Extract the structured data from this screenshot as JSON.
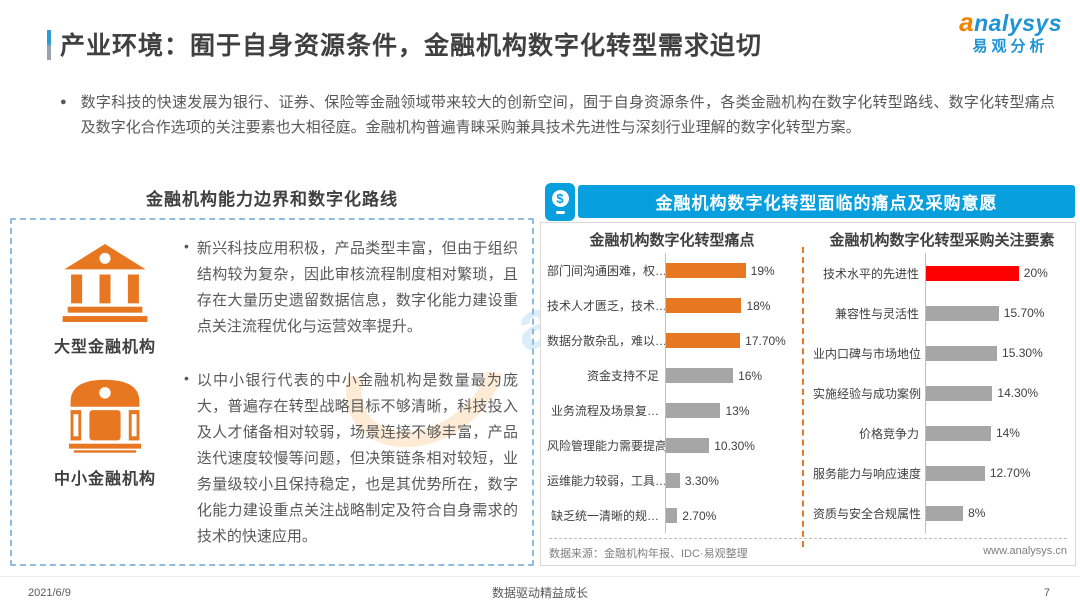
{
  "page": {
    "title": "产业环境：囿于自身资源条件，金融机构数字化转型需求迫切",
    "logo": {
      "brand_a": "a",
      "brand_rest": "nalysys",
      "cn": "易观分析"
    },
    "intro": {
      "bullet_glyph": "●",
      "text": "数字科技的快速发展为银行、证券、保险等金融领域带来较大的创新空间，囿于自身资源条件，各类金融机构在数字化转型路线、数字化转型痛点及数字化合作选项的关注要素也大相径庭。金融机构普遍青睐采购兼具技术先进性与深刻行业理解的数字化转型方案。"
    },
    "footer": {
      "date": "2021/6/9",
      "slogan": "数据驱动精益成长",
      "page_number": "7"
    }
  },
  "left_panel": {
    "title": "金融机构能力边界和数字化路线",
    "bullet_glyph": "•",
    "items": [
      {
        "icon": "bank-large-icon",
        "label": "大型金融机构",
        "text": "新兴科技应用积极，产品类型丰富，但由于组织结构较为复杂，因此审核流程制度相对繁琐，且存在大量历史遗留数据信息，数字化能力建设重点关注流程优化与运营效率提升。"
      },
      {
        "icon": "bank-small-icon",
        "label": "中小金融机构",
        "text": "以中小银行代表的中小金融机构是数量最为庞大，普遍存在转型战略目标不够清晰，科技投入及人才储备相对较弱，场景连接不够丰富，产品迭代速度较慢等问题，但决策链条相对较短，业务量级较小且保持稳定，也是其优势所在，数字化能力建设重点关注战略制定及符合自身需求的技术的快速应用。"
      }
    ]
  },
  "right_panel": {
    "header": "金融机构数字化转型面临的痛点及采购意愿",
    "icon_glyph": "$",
    "source": "数据来源：金融机构年报、IDC·易观整理",
    "website": "www.analysys.cn"
  },
  "chart_data": [
    {
      "type": "bar",
      "orientation": "horizontal",
      "title": "金融机构数字化转型痛点",
      "categories": [
        "部门间沟通困难，权…",
        "技术人才匮乏，技术…",
        "数据分散杂乱，难以…",
        "资金支持不足",
        "业务流程及场景复…",
        "风险管理能力需要提高",
        "运维能力较弱，工具…",
        "缺乏统一清晰的规…"
      ],
      "values": [
        19,
        18,
        17.7,
        16,
        13,
        10.3,
        3.3,
        2.7
      ],
      "labels": [
        "19%",
        "18%",
        "17.70%",
        "16%",
        "13%",
        "10.30%",
        "3.30%",
        "2.70%"
      ],
      "bar_colors": [
        "#E87722",
        "#E87722",
        "#E87722",
        "#A6A6A6",
        "#A6A6A6",
        "#A6A6A6",
        "#A6A6A6",
        "#A6A6A6"
      ],
      "xlim": [
        0,
        20
      ],
      "grid": false,
      "legend": "none"
    },
    {
      "type": "bar",
      "orientation": "horizontal",
      "title": "金融机构数字化转型采购关注要素",
      "categories": [
        "技术水平的先进性",
        "兼容性与灵活性",
        "业内口碑与市场地位",
        "实施经验与成功案例",
        "价格竞争力",
        "服务能力与响应速度",
        "资质与安全合规属性"
      ],
      "values": [
        20,
        15.7,
        15.3,
        14.3,
        14,
        12.7,
        8
      ],
      "labels": [
        "20%",
        "15.70%",
        "15.30%",
        "14.30%",
        "14%",
        "12.70%",
        "8%"
      ],
      "bar_colors": [
        "#FF0000",
        "#A6A6A6",
        "#A6A6A6",
        "#A6A6A6",
        "#A6A6A6",
        "#A6A6A6",
        "#A6A6A6"
      ],
      "xlim": [
        0,
        20
      ],
      "grid": false,
      "legend": "none"
    }
  ],
  "colors": {
    "accent_blue": "#089FDF",
    "orange": "#E87722",
    "red": "#FF0000",
    "gray_bar": "#A6A6A6",
    "dashed_border_blue": "#8FBBDF",
    "panel_border": "#D9D9D9",
    "logo_blue": "#1E93D6",
    "logo_orange": "#F08300"
  }
}
